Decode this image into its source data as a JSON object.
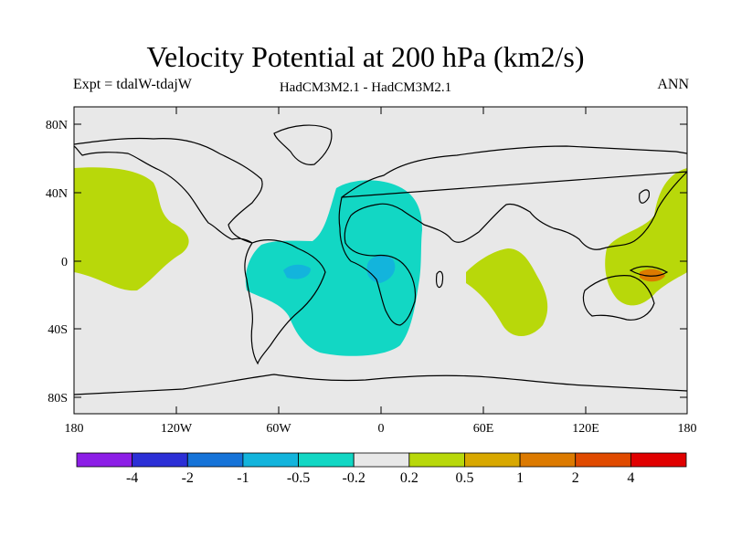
{
  "header": {
    "title": "Velocity Potential at 200 hPa (km2/s)",
    "experiment": "Expt = tdalW-tdajW",
    "models": "HadCM3M2.1 - HadCM3M2.1",
    "season": "ANN"
  },
  "axes": {
    "lat_labels": [
      "80N",
      "40N",
      "0",
      "40S",
      "80S"
    ],
    "lon_labels": [
      "180",
      "120W",
      "60W",
      "0",
      "60E",
      "120E",
      "180"
    ]
  },
  "colorbar": {
    "colors": [
      "#8c1ee6",
      "#2c2fd6",
      "#1673d8",
      "#13b4dc",
      "#12d7c4",
      "#e8e8e8",
      "#b8d80a",
      "#d8a800",
      "#dc7a00",
      "#e04a00",
      "#e00000"
    ],
    "labels": [
      "-4",
      "-2",
      "-1",
      "-0.5",
      "-0.2",
      "0.2",
      "0.5",
      "1",
      "2",
      "4"
    ]
  },
  "colors": {
    "background": "#e8e8e8",
    "negative": "#12d7c4",
    "negative_strong": "#13b4dc",
    "positive": "#b8d80a",
    "positive_strong": "#dc7a00"
  }
}
